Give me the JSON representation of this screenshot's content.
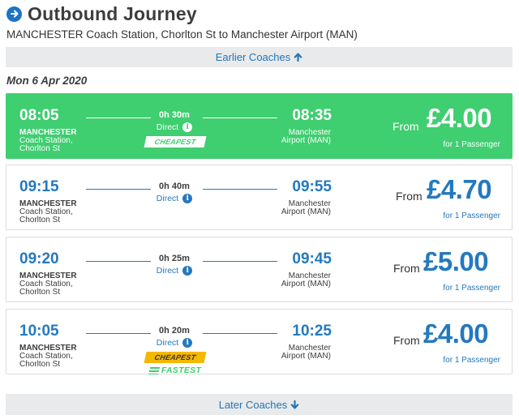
{
  "header": {
    "title": "Outbound Journey",
    "icon": "arrow-right-circle-icon"
  },
  "route": "MANCHESTER Coach Station, Chorlton St to Manchester Airport (MAN)",
  "earlier": "Earlier Coaches",
  "later": "Later Coaches",
  "date": "Mon 6 Apr 2020",
  "journeys": [
    {
      "dep": "08:05",
      "arr": "08:35",
      "duration": "0h 30m",
      "type": "Direct",
      "origin": [
        "MANCHESTER",
        "Coach Station,",
        "Chorlton St"
      ],
      "dest": [
        "Manchester",
        "Airport (MAN)"
      ],
      "from": "From",
      "price": "£4.00",
      "pax": "for 1 Passenger",
      "cheapest": "CHEAPEST",
      "fastest": "",
      "selected": true
    },
    {
      "dep": "09:15",
      "arr": "09:55",
      "duration": "0h 40m",
      "type": "Direct",
      "origin": [
        "MANCHESTER",
        "Coach Station,",
        "Chorlton St"
      ],
      "dest": [
        "Manchester",
        "Airport (MAN)"
      ],
      "from": "From",
      "price": "£4.70",
      "pax": "for 1 Passenger",
      "cheapest": "",
      "fastest": "",
      "selected": false
    },
    {
      "dep": "09:20",
      "arr": "09:45",
      "duration": "0h 25m",
      "type": "Direct",
      "origin": [
        "MANCHESTER",
        "Coach Station,",
        "Chorlton St"
      ],
      "dest": [
        "Manchester",
        "Airport (MAN)"
      ],
      "from": "From",
      "price": "£5.00",
      "pax": "for 1 Passenger",
      "cheapest": "",
      "fastest": "",
      "selected": false
    },
    {
      "dep": "10:05",
      "arr": "10:25",
      "duration": "0h 20m",
      "type": "Direct",
      "origin": [
        "MANCHESTER",
        "Coach Station,",
        "Chorlton St"
      ],
      "dest": [
        "Manchester",
        "Airport (MAN)"
      ],
      "from": "From",
      "price": "£4.00",
      "pax": "for 1 Passenger",
      "cheapest": "CHEAPEST",
      "fastest": "FASTEST",
      "selected": false
    }
  ],
  "colors": {
    "accent": "#2479be",
    "selected": "#3fce70",
    "cheapest_badge": "#f5b800",
    "nav_bg": "#e9eaeb"
  }
}
